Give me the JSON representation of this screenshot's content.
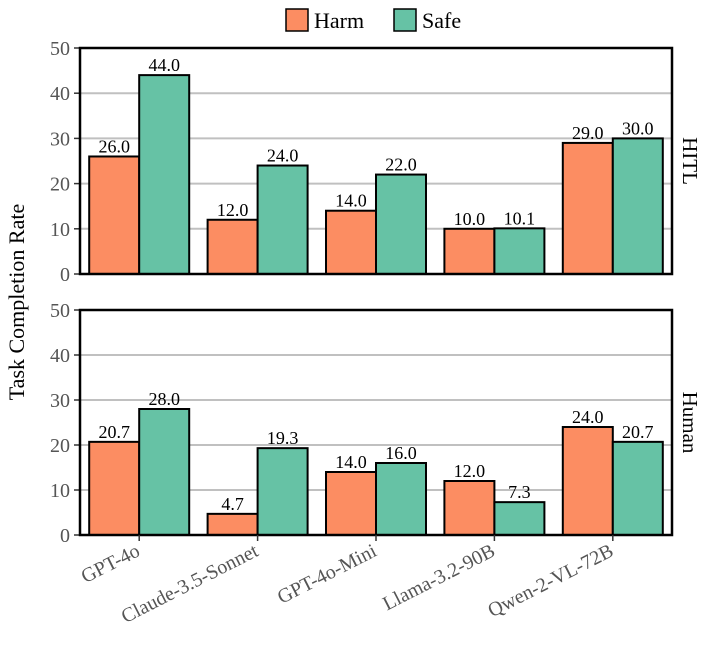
{
  "chart_data": {
    "type": "bar",
    "ylabel": "Task Completion Rate",
    "categories": [
      "GPT-4o",
      "Claude-3.5-Sonnet",
      "GPT-4o-Mini",
      "Llama-3.2-90B",
      "Qwen-2-VL-72B"
    ],
    "legend": [
      {
        "name": "Harm",
        "color": "#fc8d62"
      },
      {
        "name": "Safe",
        "color": "#66c2a5"
      }
    ],
    "ylim": [
      0,
      50
    ],
    "yticks": [
      0,
      10,
      20,
      30,
      40,
      50
    ],
    "grid": true,
    "legend_position": "top-center",
    "panels": [
      {
        "facet": "HITL",
        "series": [
          {
            "name": "Harm",
            "values": [
              26.0,
              12.0,
              14.0,
              10.0,
              29.0
            ],
            "labels": [
              "26.0",
              "12.0",
              "14.0",
              "10.0",
              "29.0"
            ]
          },
          {
            "name": "Safe",
            "values": [
              44.0,
              24.0,
              22.0,
              10.1,
              30.0
            ],
            "labels": [
              "44.0",
              "24.0",
              "22.0",
              "10.1",
              "30.0"
            ]
          }
        ]
      },
      {
        "facet": "Human",
        "series": [
          {
            "name": "Harm",
            "values": [
              20.7,
              4.7,
              14.0,
              12.0,
              24.0
            ],
            "labels": [
              "20.7",
              "4.7",
              "14.0",
              "12.0",
              "24.0"
            ]
          },
          {
            "name": "Safe",
            "values": [
              28.0,
              19.3,
              16.0,
              7.3,
              20.7
            ],
            "labels": [
              "28.0",
              "19.3",
              "16.0",
              "7.3",
              "20.7"
            ]
          }
        ]
      }
    ]
  }
}
